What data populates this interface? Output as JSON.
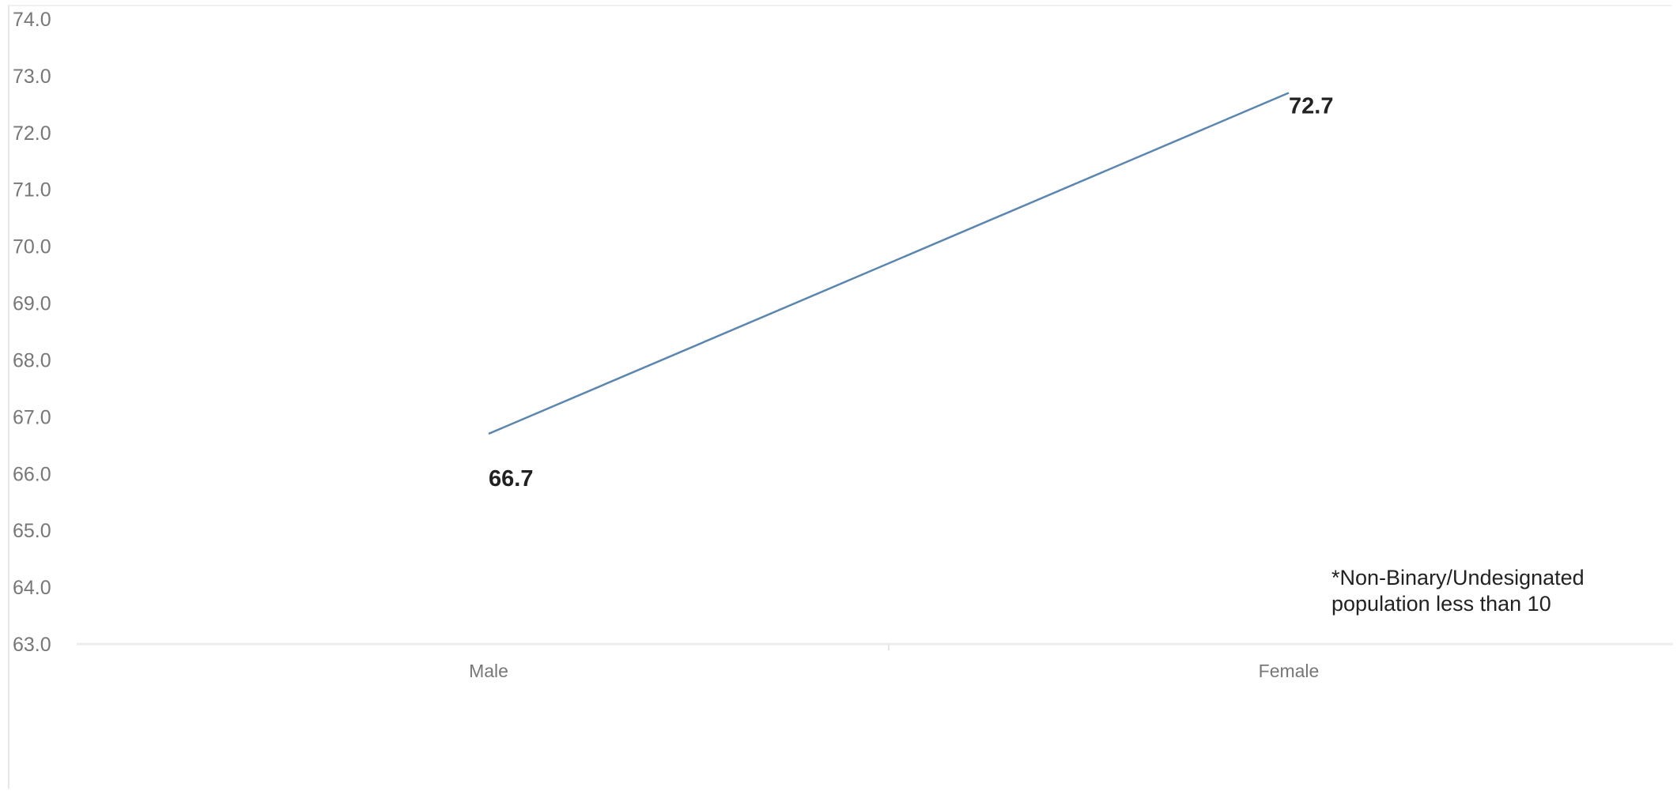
{
  "chart_data": {
    "type": "line",
    "categories": [
      "Male",
      "Female"
    ],
    "series": [
      {
        "values": [
          66.7,
          72.7
        ]
      }
    ],
    "data_labels": [
      "66.7",
      "72.7"
    ],
    "ylim": [
      63.0,
      74.0
    ],
    "yticks": [
      "63.0",
      "64.0",
      "65.0",
      "66.0",
      "67.0",
      "68.0",
      "69.0",
      "70.0",
      "71.0",
      "72.0",
      "73.0",
      "74.0"
    ],
    "xlabel": "",
    "ylabel": "",
    "title": "",
    "grid": false,
    "line_color": "#5b86b0",
    "note_lines": [
      "*Non-Binary/Undesignated",
      "population less than 10"
    ]
  }
}
